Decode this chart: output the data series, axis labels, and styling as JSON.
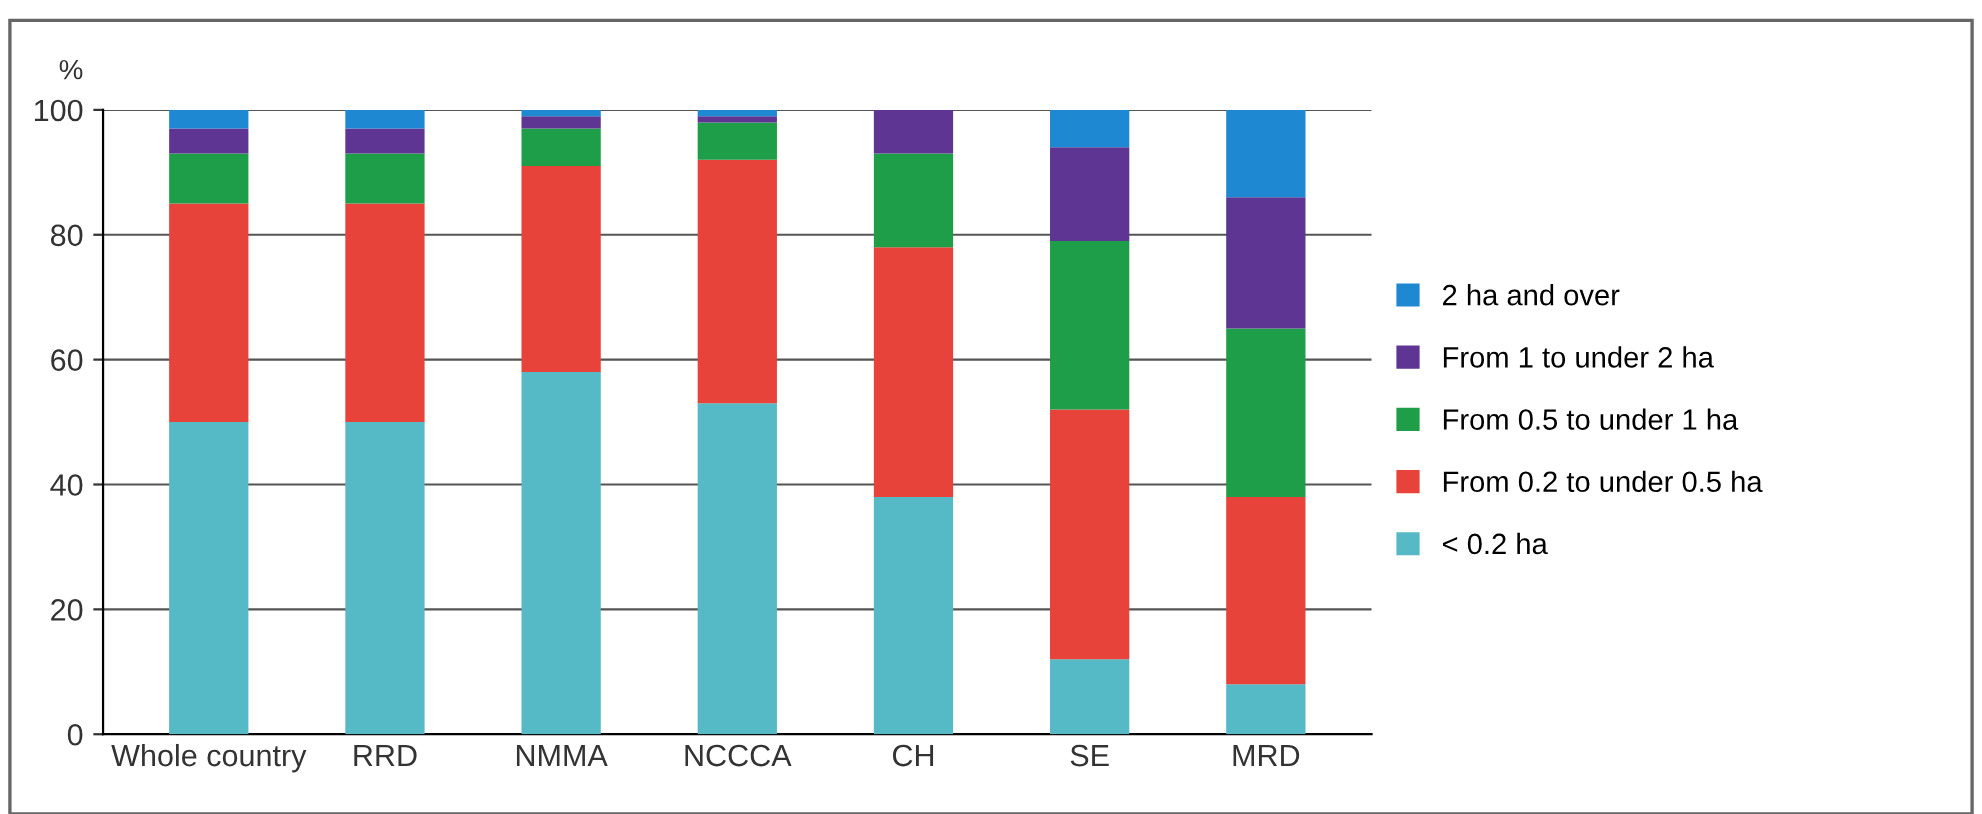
{
  "chart_data": {
    "type": "bar",
    "stacked": true,
    "ylabel": "%",
    "categories": [
      "Whole country",
      "RRD",
      "NMMA",
      "NCCCA",
      "CH",
      "SE",
      "MRD"
    ],
    "series": [
      {
        "name": "< 0.2 ha",
        "color": "#55b9c6",
        "values": [
          50,
          50,
          58,
          53,
          38,
          12,
          8
        ]
      },
      {
        "name": "From 0.2 to under 0.5 ha",
        "color": "#e8433a",
        "values": [
          35,
          35,
          33,
          39,
          40,
          40,
          30
        ]
      },
      {
        "name": "From 0.5 to under 1 ha",
        "color": "#1f9e4a",
        "values": [
          8,
          8,
          6,
          6,
          15,
          27,
          27
        ]
      },
      {
        "name": "From 1 to under 2 ha",
        "color": "#5e3592",
        "values": [
          4,
          4,
          2,
          1,
          7,
          15,
          21
        ]
      },
      {
        "name": "2 ha and over",
        "color": "#1e88d2",
        "values": [
          3,
          3,
          1,
          1,
          0,
          6,
          14
        ]
      }
    ],
    "ylim": [
      0,
      100
    ],
    "yticks": [
      0,
      20,
      40,
      60,
      80,
      100
    ],
    "grid": "y",
    "legend": "right"
  }
}
